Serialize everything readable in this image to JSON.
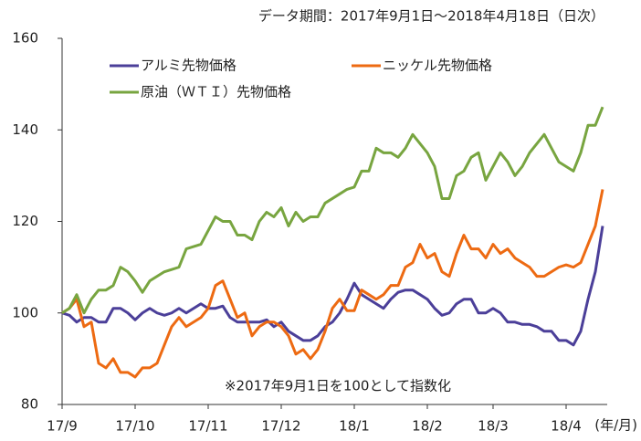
{
  "chart_data": {
    "type": "line",
    "title": "データ期間：2017年9月1日～2018年4月18日（日次）",
    "annotation": "※2017年9月1日を100として指数化",
    "x_unit": "(年/月)",
    "categories": [
      "17/9",
      null,
      null,
      null,
      null,
      null,
      null,
      null,
      null,
      null,
      "17/10",
      null,
      null,
      null,
      null,
      null,
      null,
      null,
      null,
      null,
      "17/11",
      null,
      null,
      null,
      null,
      null,
      null,
      null,
      null,
      null,
      "17/12",
      null,
      null,
      null,
      null,
      null,
      null,
      null,
      null,
      null,
      "18/1",
      null,
      null,
      null,
      null,
      null,
      null,
      null,
      null,
      null,
      "18/2",
      null,
      null,
      null,
      null,
      null,
      null,
      null,
      null,
      "18/3",
      null,
      null,
      null,
      null,
      null,
      null,
      null,
      null,
      null,
      "18/4",
      null,
      null,
      null,
      null,
      null
    ],
    "series": [
      {
        "name": "アルミ先物価格",
        "color": "#4b3f99",
        "values": [
          100,
          99.5,
          98,
          99,
          99,
          98,
          98,
          101,
          101,
          100,
          98.5,
          100,
          101,
          100,
          99.5,
          100,
          101,
          100,
          101,
          102,
          101,
          101,
          101.5,
          99,
          98,
          98,
          98,
          98,
          98.5,
          97,
          98,
          96,
          95,
          94,
          94,
          95,
          97,
          98,
          100,
          103,
          106.5,
          104,
          103,
          102,
          101,
          103,
          104.5,
          105,
          105,
          104,
          103,
          101,
          99.5,
          100,
          102,
          103,
          103,
          100,
          100,
          101,
          100,
          98,
          98,
          97.5,
          97.5,
          97,
          96,
          96,
          94,
          94,
          93,
          96,
          103,
          109,
          119
        ]
      },
      {
        "name": "ニッケル先物価格",
        "color": "#ed6a12",
        "values": [
          100,
          101,
          103,
          97,
          98,
          89,
          88,
          90,
          87,
          87,
          86,
          88,
          88,
          89,
          93,
          97,
          99,
          97,
          98,
          99,
          101,
          106,
          107,
          103,
          99,
          100,
          95,
          97,
          98,
          98,
          97,
          95,
          91,
          92,
          90,
          92,
          96,
          101,
          103,
          100.5,
          100.5,
          105,
          104,
          103,
          104,
          106,
          106,
          110,
          111,
          115,
          112,
          113,
          109,
          108,
          113,
          117,
          114,
          114,
          112,
          115,
          113,
          114,
          112,
          111,
          110,
          108,
          108,
          109,
          110,
          110.5,
          110,
          111,
          115,
          119,
          127
        ]
      },
      {
        "name": "原油（ＷＴＩ）先物価格",
        "color": "#78a540",
        "values": [
          100,
          101,
          104,
          100,
          103,
          105,
          105,
          106,
          110,
          109,
          107,
          104.5,
          107,
          108,
          109,
          109.5,
          110,
          114,
          114.5,
          115,
          118,
          121,
          120,
          120,
          117,
          117,
          116,
          120,
          122,
          121,
          123,
          119,
          122,
          120,
          121,
          121,
          124,
          125,
          126,
          127,
          127.5,
          131,
          131,
          136,
          135,
          135,
          134,
          136,
          139,
          137,
          135,
          132,
          125,
          125,
          130,
          131,
          134,
          135,
          129,
          132,
          135,
          133,
          130,
          132,
          135,
          137,
          139,
          136,
          133,
          132,
          131,
          135,
          141,
          141,
          145
        ]
      }
    ],
    "ylim": [
      80,
      160
    ],
    "yticks": [
      80,
      100,
      120,
      140,
      160
    ],
    "grid": false
  }
}
